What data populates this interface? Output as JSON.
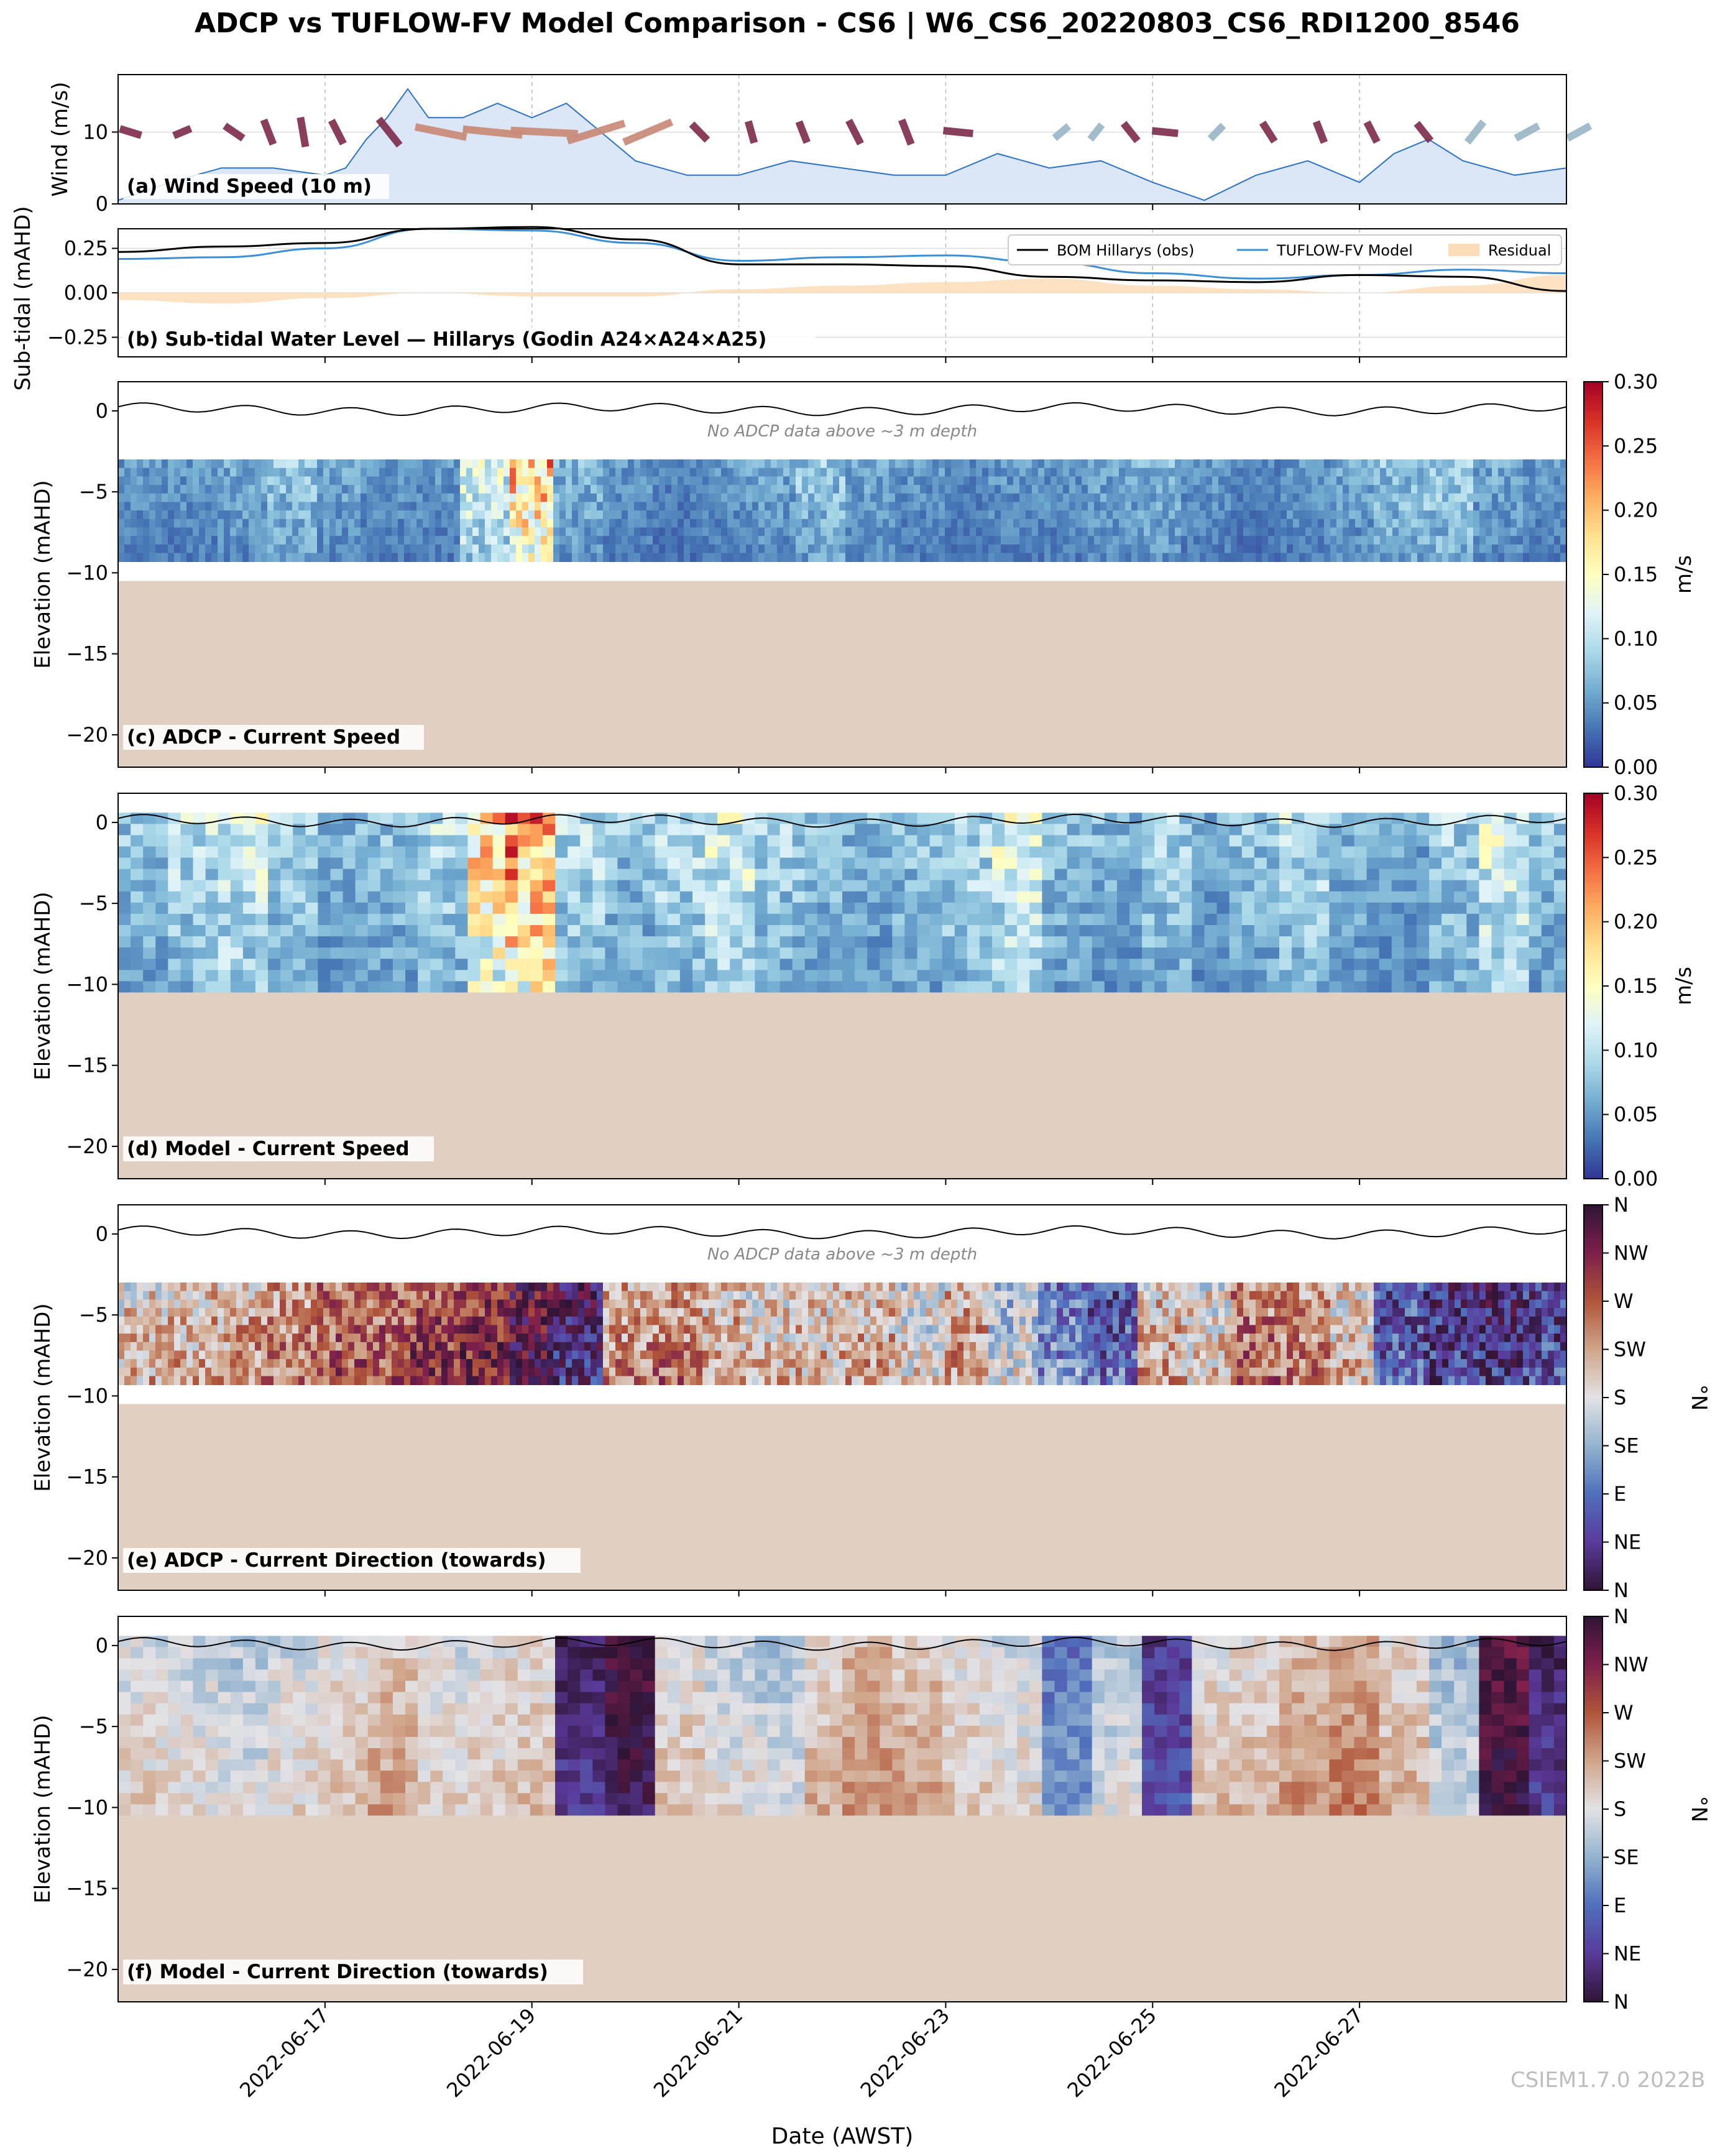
{
  "figure_title": "ADCP vs TUFLOW-FV Model Comparison - CS6 | W6_CS6_20220803_CS6_RDI1200_8546",
  "watermark": "CSIEM1.7.0 2022B",
  "colors": {
    "wind_fill": "#dbe6f6",
    "wind_line": "#2c72c7",
    "obs_line": "#000000",
    "model_line": "#3c8fd6",
    "residual_fill": "#fbdcb8",
    "seabed": "#e0cfc3",
    "wind_arrow_pos": "#7f2f4f",
    "wind_arrow_neg": "#9bb7c8"
  },
  "chart_data": [
    {
      "id": "a",
      "type": "area",
      "panel_label": "(a) Wind Speed (10 m)",
      "ylabel": "Wind (m/s)",
      "ylim": [
        0,
        18
      ],
      "yticks": [
        0,
        10
      ],
      "x_range": [
        "2022-06-15",
        "2022-06-29"
      ],
      "x": [
        "2022-06-15",
        "2022-06-15",
        "2022-06-16",
        "2022-06-16",
        "2022-06-17",
        "2022-06-17",
        "2022-06-17",
        "2022-06-17",
        "2022-06-17",
        "2022-06-18",
        "2022-06-18",
        "2022-06-18",
        "2022-06-19",
        "2022-06-19",
        "2022-06-19",
        "2022-06-20",
        "2022-06-20",
        "2022-06-21",
        "2022-06-21",
        "2022-06-22",
        "2022-06-22",
        "2022-06-23",
        "2022-06-23",
        "2022-06-24",
        "2022-06-24",
        "2022-06-25",
        "2022-06-25",
        "2022-06-26",
        "2022-06-26",
        "2022-06-27",
        "2022-06-27",
        "2022-06-27",
        "2022-06-28",
        "2022-06-28",
        "2022-06-29"
      ],
      "values": [
        0.5,
        3,
        5,
        5,
        4,
        5,
        9,
        12,
        16,
        12,
        12,
        14,
        12,
        14,
        10,
        6,
        4,
        4,
        6,
        5,
        4,
        4,
        7,
        5,
        6,
        3,
        0.5,
        4,
        6,
        3,
        7,
        9,
        6,
        4,
        5
      ],
      "arrows_note": "",
      "arrows": [
        {
          "x": "2022-06-15",
          "dir": 0.3,
          "len": 0.6,
          "pos": 1
        },
        {
          "x": "2022-06-15",
          "dir": -0.4,
          "len": 0.5,
          "pos": 1
        },
        {
          "x": "2022-06-16",
          "dir": 0.6,
          "len": 0.6,
          "pos": 1
        },
        {
          "x": "2022-06-16",
          "dir": 1.2,
          "len": 0.7,
          "pos": 1
        },
        {
          "x": "2022-06-16",
          "dir": 1.4,
          "len": 0.8,
          "pos": 1
        },
        {
          "x": "2022-06-17",
          "dir": 1.1,
          "len": 0.7,
          "pos": 1
        },
        {
          "x": "2022-06-17",
          "dir": 0.9,
          "len": 0.9,
          "pos": 1
        },
        {
          "x": "2022-06-18",
          "dir": 0.2,
          "len": 1.4,
          "pos": 1
        },
        {
          "x": "2022-06-18",
          "dir": 0.1,
          "len": 1.6,
          "pos": 1
        },
        {
          "x": "2022-06-19",
          "dir": 0.05,
          "len": 1.8,
          "pos": 1
        },
        {
          "x": "2022-06-19",
          "dir": -0.3,
          "len": 1.6,
          "pos": 1
        },
        {
          "x": "2022-06-20",
          "dir": -0.4,
          "len": 1.4,
          "pos": 1
        },
        {
          "x": "2022-06-20",
          "dir": 0.8,
          "len": 0.6,
          "pos": 1
        },
        {
          "x": "2022-06-21",
          "dir": 1.3,
          "len": 0.6,
          "pos": 1
        },
        {
          "x": "2022-06-21",
          "dir": 1.2,
          "len": 0.6,
          "pos": 1
        },
        {
          "x": "2022-06-22",
          "dir": 1.1,
          "len": 0.7,
          "pos": 1
        },
        {
          "x": "2022-06-22",
          "dir": 1.2,
          "len": 0.7,
          "pos": 1
        },
        {
          "x": "2022-06-23",
          "dir": 0.1,
          "len": 0.8,
          "pos": 1
        },
        {
          "x": "2022-06-24",
          "dir": -0.7,
          "len": 0.5,
          "pos": 0
        },
        {
          "x": "2022-06-24",
          "dir": -0.9,
          "len": 0.5,
          "pos": 0
        },
        {
          "x": "2022-06-24",
          "dir": 0.9,
          "len": 0.6,
          "pos": 1
        },
        {
          "x": "2022-06-25",
          "dir": 0.1,
          "len": 0.7,
          "pos": 1
        },
        {
          "x": "2022-06-25",
          "dir": -0.8,
          "len": 0.5,
          "pos": 0
        },
        {
          "x": "2022-06-26",
          "dir": 1.0,
          "len": 0.6,
          "pos": 1
        },
        {
          "x": "2022-06-26",
          "dir": 1.2,
          "len": 0.6,
          "pos": 1
        },
        {
          "x": "2022-06-27",
          "dir": 1.1,
          "len": 0.6,
          "pos": 1
        },
        {
          "x": "2022-06-27",
          "dir": 0.9,
          "len": 0.6,
          "pos": 1
        },
        {
          "x": "2022-06-28",
          "dir": -0.9,
          "len": 0.7,
          "pos": 0
        },
        {
          "x": "2022-06-28",
          "dir": -0.5,
          "len": 0.7,
          "pos": 0
        },
        {
          "x": "2022-06-29",
          "dir": -0.5,
          "len": 0.7,
          "pos": 0
        }
      ],
      "grid": true
    },
    {
      "id": "b",
      "type": "line",
      "panel_label": "(b) Sub-tidal Water Level — Hillarys (Godin A24×A24×A25)",
      "ylabel": "Sub-tidal (mAHD)",
      "ylim": [
        -0.36,
        0.36
      ],
      "yticks": [
        -0.25,
        0.0,
        0.25
      ],
      "ytick_labels": [
        "−0.25",
        "0.00",
        "0.25"
      ],
      "legend_position": "top-right",
      "x": [
        "2022-06-15",
        "2022-06-16",
        "2022-06-17",
        "2022-06-18",
        "2022-06-19",
        "2022-06-20",
        "2022-06-21",
        "2022-06-22",
        "2022-06-23",
        "2022-06-24",
        "2022-06-25",
        "2022-06-26",
        "2022-06-27",
        "2022-06-28",
        "2022-06-29"
      ],
      "series": [
        {
          "name": "BOM Hillarys (obs)",
          "values": [
            0.23,
            0.26,
            0.28,
            0.36,
            0.37,
            0.3,
            0.16,
            0.16,
            0.15,
            0.09,
            0.07,
            0.06,
            0.1,
            0.09,
            0.01
          ]
        },
        {
          "name": "TUFLOW-FV Model",
          "values": [
            0.19,
            0.2,
            0.25,
            0.36,
            0.35,
            0.28,
            0.18,
            0.2,
            0.21,
            0.17,
            0.11,
            0.08,
            0.1,
            0.13,
            0.11
          ]
        },
        {
          "name": "Residual",
          "values": [
            -0.04,
            -0.06,
            -0.03,
            0.0,
            -0.02,
            -0.02,
            0.02,
            0.04,
            0.06,
            0.08,
            0.04,
            0.02,
            0.0,
            0.04,
            0.1
          ]
        }
      ],
      "grid": true
    },
    {
      "id": "c",
      "type": "heatmap",
      "panel_label": "(c) ADCP - Current Speed",
      "ylabel": "Elevation (mAHD)",
      "ylim": [
        -22,
        1.8
      ],
      "yticks": [
        -20,
        -15,
        -10,
        -5,
        0
      ],
      "ytick_labels": [
        "−20",
        "−15",
        "−10",
        "−5",
        "0"
      ],
      "data_range": [
        -9.3,
        -3
      ],
      "seabed": -10.5,
      "annotation": "No ADCP data above ~3 m depth",
      "colorbar": {
        "label": "m/s",
        "min": 0.0,
        "max": 0.3,
        "ticks": [
          "0.00",
          "0.05",
          "0.10",
          "0.15",
          "0.20",
          "0.25",
          "0.30"
        ],
        "colormap": "RdYlBu_r"
      },
      "speed_profile_m_s": [
        0.05,
        0.05,
        0.06,
        0.08,
        0.06,
        0.05,
        0.05,
        0.12,
        0.2,
        0.07,
        0.05,
        0.04,
        0.05,
        0.06,
        0.08,
        0.06,
        0.05,
        0.04,
        0.05,
        0.05,
        0.06,
        0.07,
        0.05,
        0.04,
        0.05,
        0.06,
        0.08,
        0.09,
        0.06,
        0.05
      ]
    },
    {
      "id": "d",
      "type": "heatmap",
      "panel_label": "(d) Model - Current Speed",
      "ylabel": "Elevation (mAHD)",
      "ylim": [
        -22,
        1.8
      ],
      "yticks": [
        -20,
        -15,
        -10,
        -5,
        0
      ],
      "ytick_labels": [
        "−20",
        "−15",
        "−10",
        "−5",
        "0"
      ],
      "seabed": -10.5,
      "colorbar": {
        "label": "m/s",
        "min": 0.0,
        "max": 0.3,
        "ticks": [
          "0.00",
          "0.05",
          "0.10",
          "0.15",
          "0.20",
          "0.25",
          "0.30"
        ],
        "colormap": "RdYlBu_r"
      },
      "speed_profile_m_s": [
        0.08,
        0.1,
        0.12,
        0.09,
        0.07,
        0.08,
        0.1,
        0.18,
        0.22,
        0.1,
        0.08,
        0.1,
        0.12,
        0.09,
        0.08,
        0.07,
        0.08,
        0.1,
        0.12,
        0.08,
        0.07,
        0.09,
        0.06,
        0.08,
        0.1,
        0.07,
        0.06,
        0.09,
        0.12,
        0.08
      ]
    },
    {
      "id": "e",
      "type": "heatmap",
      "panel_label": "(e) ADCP - Current Direction (towards)",
      "ylabel": "Elevation (mAHD)",
      "ylim": [
        -22,
        1.8
      ],
      "yticks": [
        -20,
        -15,
        -10,
        -5,
        0
      ],
      "ytick_labels": [
        "−20",
        "−15",
        "−10",
        "−5",
        "0"
      ],
      "data_range": [
        -9.3,
        -3
      ],
      "seabed": -10.5,
      "annotation": "No ADCP data above ~3 m depth",
      "colorbar": {
        "label": "°N",
        "min": 0,
        "max": 360,
        "ticks": [
          "N",
          "NE",
          "E",
          "SE",
          "S",
          "SW",
          "W",
          "NW",
          "N"
        ],
        "colormap": "twilight_shifted"
      },
      "direction_profile_deg": [
        190,
        200,
        210,
        230,
        250,
        250,
        270,
        285,
        330,
        10,
        220,
        230,
        200,
        185,
        190,
        200,
        170,
        210,
        150,
        90,
        60,
        200,
        180,
        240,
        230,
        190,
        60,
        30,
        20,
        40
      ]
    },
    {
      "id": "f",
      "type": "heatmap",
      "panel_label": "(f) Model - Current Direction (towards)",
      "ylabel": "Elevation (mAHD)",
      "xlabel": "Date (AWST)",
      "ylim": [
        -22,
        1.8
      ],
      "yticks": [
        -20,
        -15,
        -10,
        -5,
        0
      ],
      "ytick_labels": [
        "−20",
        "−15",
        "−10",
        "−5",
        "0"
      ],
      "seabed": -10.5,
      "colorbar": {
        "label": "°N",
        "min": 0,
        "max": 360,
        "ticks": [
          "N",
          "NE",
          "E",
          "SE",
          "S",
          "SW",
          "W",
          "NW",
          "N"
        ],
        "colormap": "twilight_shifted"
      },
      "direction_profile_deg": [
        170,
        160,
        150,
        165,
        180,
        200,
        170,
        175,
        185,
        20,
        345,
        180,
        160,
        150,
        190,
        210,
        200,
        175,
        165,
        90,
        150,
        40,
        180,
        185,
        210,
        220,
        190,
        140,
        330,
        20
      ]
    }
  ],
  "x_axis": {
    "tick_labels": [
      "2022-06-17",
      "2022-06-19",
      "2022-06-21",
      "2022-06-23",
      "2022-06-25",
      "2022-06-27"
    ]
  }
}
